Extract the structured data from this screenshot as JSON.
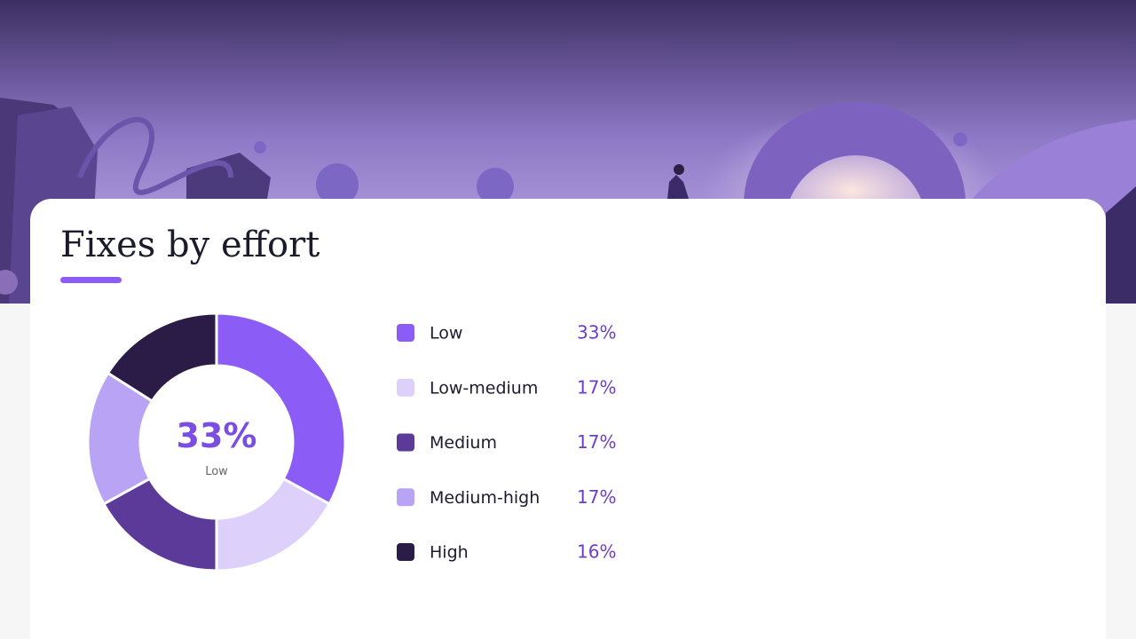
{
  "chart_data": {
    "type": "donut",
    "title": "Fixes by effort",
    "categories": [
      "Low",
      "Low-medium",
      "Medium",
      "Medium-high",
      "High"
    ],
    "values": [
      33,
      17,
      17,
      17,
      16
    ],
    "value_labels": [
      "33%",
      "17%",
      "17%",
      "17%",
      "16%"
    ],
    "colors": [
      "#8b5cf6",
      "#ddd0fb",
      "#5b3a9a",
      "#b9a3f5",
      "#2a1b47"
    ]
  }
}
